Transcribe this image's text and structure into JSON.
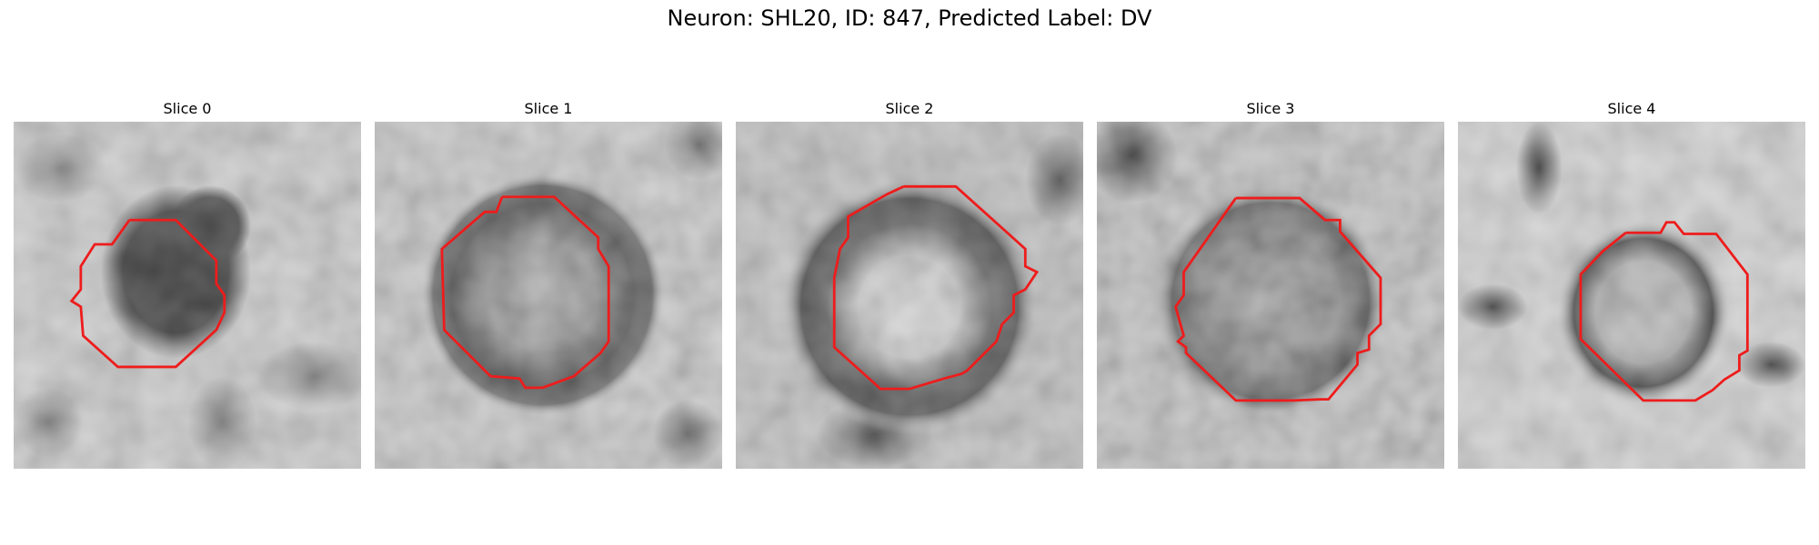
{
  "figure": {
    "title": "Neuron: SHL20, ID: 847, Predicted Label: DV"
  },
  "panels": [
    {
      "title": "Slice 0",
      "description": "grayscale EM patch, dark blob with red contour outline"
    },
    {
      "title": "Slice 1",
      "description": "grayscale EM patch, ring-shaped cell with octagonal red contour"
    },
    {
      "title": "Slice 2",
      "description": "grayscale EM patch, bright center with dark ring, red contour"
    },
    {
      "title": "Slice 3",
      "description": "grayscale EM patch, textured cell body, red octagonal contour"
    },
    {
      "title": "Slice 4",
      "description": "grayscale EM patch, small ring cell, red contour"
    }
  ],
  "colors": {
    "contour": "#ee1c1c",
    "background": "#ffffff"
  }
}
